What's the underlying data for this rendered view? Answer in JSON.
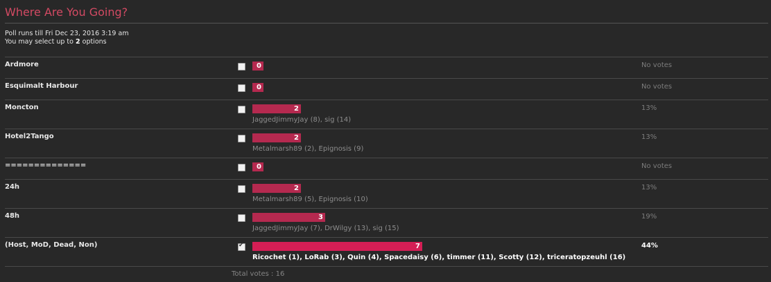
{
  "poll": {
    "title": "Where Are You Going?",
    "runs_till": "Poll runs till Fri Dec 23, 2016 3:19 am",
    "select_prefix": "You may select up to ",
    "select_count": "2",
    "select_suffix": " options",
    "total_votes": "Total votes : 16"
  },
  "options": [
    {
      "label": "Ardmore",
      "votes": "0",
      "voters": "",
      "pct": "No votes",
      "checked": false,
      "winner": false,
      "share": 0
    },
    {
      "label": "Esquimalt Harbour",
      "votes": "0",
      "voters": "",
      "pct": "No votes",
      "checked": false,
      "winner": false,
      "share": 0
    },
    {
      "label": "Moncton",
      "votes": "2",
      "voters": "JaggedJimmyJay (8), sig (14)",
      "pct": "13%",
      "checked": false,
      "winner": false,
      "share": 0.125
    },
    {
      "label": "Hotel2Tango",
      "votes": "2",
      "voters": "Metalmarsh89 (2), Epignosis (9)",
      "pct": "13%",
      "checked": false,
      "winner": false,
      "share": 0.125
    },
    {
      "label": "==============",
      "votes": "0",
      "voters": "",
      "pct": "No votes",
      "checked": false,
      "winner": false,
      "share": 0
    },
    {
      "label": "24h",
      "votes": "2",
      "voters": "Metalmarsh89 (5), Epignosis (10)",
      "pct": "13%",
      "checked": false,
      "winner": false,
      "share": 0.125
    },
    {
      "label": "48h",
      "votes": "3",
      "voters": "JaggedJimmyJay (7), DrWilgy (13), sig (15)",
      "pct": "19%",
      "checked": false,
      "winner": false,
      "share": 0.1875
    },
    {
      "label": "(Host, MoD, Dead, Non)",
      "votes": "7",
      "voters": "Ricochet (1), LoRab (3), Quin (4), Spacedaisy (6), timmer (11), Scotty (12), triceratopzeuhl (16)",
      "pct": "44%",
      "checked": true,
      "winner": true,
      "share": 0.4375
    }
  ],
  "colors": {
    "accent": "#d34a63",
    "bar": "#b5294f",
    "bar_winner": "#d41e55"
  }
}
